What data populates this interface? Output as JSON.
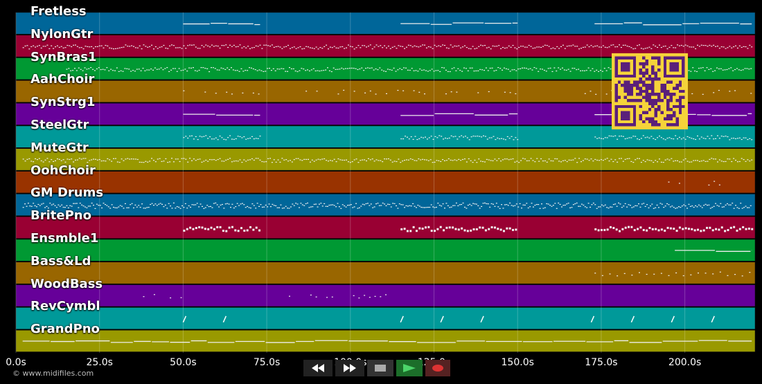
{
  "tracks": [
    {
      "label": "Fretless",
      "color": "#006699"
    },
    {
      "label": "NylonGtr",
      "color": "#990033"
    },
    {
      "label": "SynBras1",
      "color": "#009933"
    },
    {
      "label": "AahChoir",
      "color": "#996600"
    },
    {
      "label": "SynStrg1",
      "color": "#660099"
    },
    {
      "label": "SteelGtr",
      "color": "#009999"
    },
    {
      "label": "MuteGtr",
      "color": "#999900"
    },
    {
      "label": "OohChoir",
      "color": "#993300"
    },
    {
      "label": "GM Drums",
      "color": "#006699"
    },
    {
      "label": "BritePno",
      "color": "#990033"
    },
    {
      "label": "Ensmble1",
      "color": "#009933"
    },
    {
      "label": "Bass&Ld",
      "color": "#996600"
    },
    {
      "label": "WoodBass",
      "color": "#660099"
    },
    {
      "label": "RevCymbl",
      "color": "#009999"
    },
    {
      "label": "GrandPno",
      "color": "#999900"
    }
  ],
  "timeline": {
    "ticks": [
      "0.0s",
      "25.0s",
      "50.0s",
      "75.0s",
      "100.0s",
      "125.0s",
      "150.0s",
      "175.0s",
      "200.0s"
    ],
    "tick_values": [
      0,
      25,
      50,
      75,
      100,
      125,
      150,
      175,
      200
    ],
    "max_seconds": 221
  },
  "transport": {
    "buttons": [
      {
        "name": "rewind-button",
        "icon": "rewind-icon"
      },
      {
        "name": "fast-forward-button",
        "icon": "fast-forward-icon"
      },
      {
        "name": "stop-button",
        "icon": "stop-icon"
      },
      {
        "name": "play-button",
        "icon": "play-icon"
      },
      {
        "name": "record-button",
        "icon": "record-icon"
      }
    ]
  },
  "copyright": "© www.midifiles.com",
  "qr_code": {
    "icon": "qr-code-icon",
    "color": "#5a1f7a",
    "background": "#f5d33a"
  }
}
